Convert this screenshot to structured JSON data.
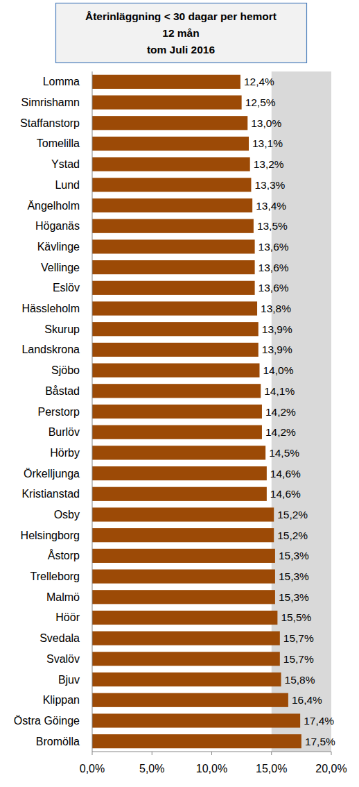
{
  "chart_data": {
    "type": "bar",
    "orientation": "horizontal",
    "title": "Återinläggning < 30 dagar per hemort",
    "subtitle": [
      "12 mån",
      "tom Juli 2016"
    ],
    "categories": [
      "Lomma",
      "Simrishamn",
      "Staffanstorp",
      "Tomelilla",
      "Ystad",
      "Lund",
      "Ängelholm",
      "Höganäs",
      "Kävlinge",
      "Vellinge",
      "Eslöv",
      "Hässleholm",
      "Skurup",
      "Landskrona",
      "Sjöbo",
      "Båstad",
      "Perstorp",
      "Burlöv",
      "Hörby",
      "Örkelljunga",
      "Kristianstad",
      "Osby",
      "Helsingborg",
      "Åstorp",
      "Trelleborg",
      "Malmö",
      "Höör",
      "Svedala",
      "Svalöv",
      "Bjuv",
      "Klippan",
      "Östra Göinge",
      "Bromölla"
    ],
    "values": [
      12.4,
      12.5,
      13.0,
      13.1,
      13.2,
      13.3,
      13.4,
      13.5,
      13.6,
      13.6,
      13.6,
      13.8,
      13.9,
      13.9,
      14.0,
      14.1,
      14.2,
      14.2,
      14.5,
      14.6,
      14.6,
      15.2,
      15.2,
      15.3,
      15.3,
      15.3,
      15.5,
      15.7,
      15.7,
      15.8,
      16.4,
      17.4,
      17.5
    ],
    "value_labels": [
      "12,4%",
      "12,5%",
      "13,0%",
      "13,1%",
      "13,2%",
      "13,3%",
      "13,4%",
      "13,5%",
      "13,6%",
      "13,6%",
      "13,6%",
      "13,8%",
      "13,9%",
      "13,9%",
      "14,0%",
      "14,1%",
      "14,2%",
      "14,2%",
      "14,5%",
      "14,6%",
      "14,6%",
      "15,2%",
      "15,2%",
      "15,3%",
      "15,3%",
      "15,3%",
      "15,5%",
      "15,7%",
      "15,7%",
      "15,8%",
      "16,4%",
      "17,4%",
      "17,5%"
    ],
    "color": "#9c4a06",
    "data_labels": true,
    "grid": false,
    "xlim": [
      0,
      20
    ],
    "xticks": [
      {
        "value": 0,
        "label": "0,0%"
      },
      {
        "value": 5,
        "label": "5,0%"
      },
      {
        "value": 10,
        "label": "10,0%"
      },
      {
        "value": 15,
        "label": "15,0%"
      },
      {
        "value": 20,
        "label": "20,0%"
      }
    ]
  }
}
